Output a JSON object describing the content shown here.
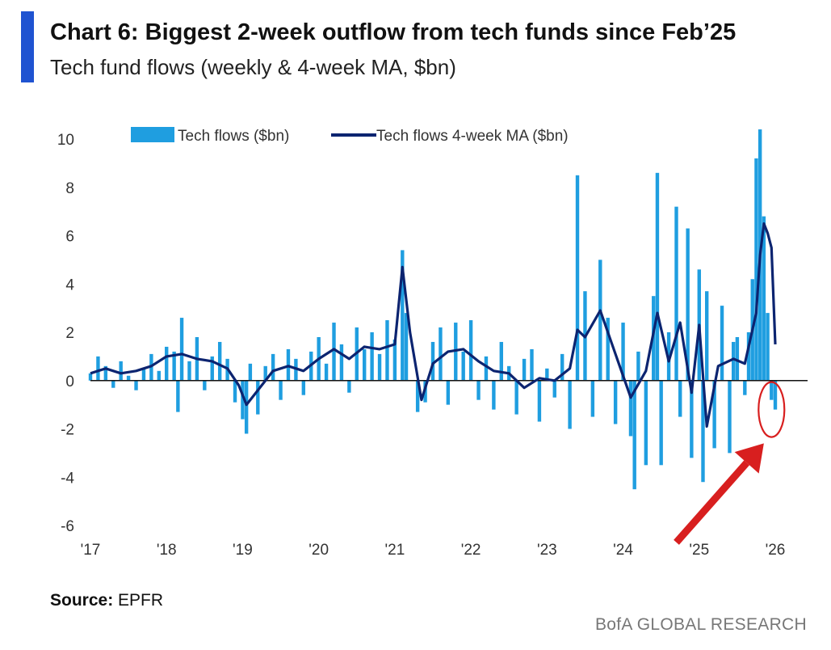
{
  "header": {
    "title": "Chart 6: Biggest 2-week outflow from tech funds since Feb’25",
    "subtitle": "Tech fund flows (weekly & 4-week MA, $bn)"
  },
  "footer": {
    "source_label": "Source:",
    "source_value": "EPFR",
    "brand": "BofA GLOBAL RESEARCH"
  },
  "colors": {
    "accent": "#1f53d1",
    "bars": "#1f9ee0",
    "ma_line": "#0c2470",
    "highlight": "#d81f1f"
  },
  "chart_data": {
    "type": "bar",
    "title": "",
    "xlabel": "",
    "ylabel": "",
    "ylim": [
      -6,
      10
    ],
    "yticks": [
      "10",
      "8",
      "6",
      "4",
      "2",
      "0",
      "-2",
      "-4",
      "-6"
    ],
    "xticks": [
      "'17",
      "'18",
      "'19",
      "'20",
      "'21",
      "'22",
      "'23",
      "'24",
      "'25",
      "'26"
    ],
    "xrange": [
      2017.0,
      2026.3
    ],
    "grid": false,
    "legend": "top-left",
    "series": [
      {
        "name": "Tech flows ($bn)",
        "kind": "bar",
        "points": [
          [
            2017.0,
            0.3
          ],
          [
            2017.1,
            1.0
          ],
          [
            2017.2,
            0.6
          ],
          [
            2017.3,
            -0.3
          ],
          [
            2017.4,
            0.8
          ],
          [
            2017.5,
            0.2
          ],
          [
            2017.6,
            -0.4
          ],
          [
            2017.7,
            0.5
          ],
          [
            2017.8,
            1.1
          ],
          [
            2017.9,
            0.4
          ],
          [
            2018.0,
            1.4
          ],
          [
            2018.1,
            1.2
          ],
          [
            2018.15,
            -1.3
          ],
          [
            2018.2,
            2.6
          ],
          [
            2018.3,
            0.8
          ],
          [
            2018.4,
            1.8
          ],
          [
            2018.5,
            -0.4
          ],
          [
            2018.6,
            1.0
          ],
          [
            2018.7,
            1.6
          ],
          [
            2018.8,
            0.9
          ],
          [
            2018.9,
            -0.9
          ],
          [
            2019.0,
            -1.6
          ],
          [
            2019.05,
            -2.2
          ],
          [
            2019.1,
            0.7
          ],
          [
            2019.2,
            -1.4
          ],
          [
            2019.3,
            0.6
          ],
          [
            2019.4,
            1.1
          ],
          [
            2019.5,
            -0.8
          ],
          [
            2019.6,
            1.3
          ],
          [
            2019.7,
            0.9
          ],
          [
            2019.8,
            -0.6
          ],
          [
            2019.9,
            1.2
          ],
          [
            2020.0,
            1.8
          ],
          [
            2020.1,
            0.7
          ],
          [
            2020.2,
            2.4
          ],
          [
            2020.3,
            1.5
          ],
          [
            2020.4,
            -0.5
          ],
          [
            2020.5,
            2.2
          ],
          [
            2020.6,
            1.3
          ],
          [
            2020.7,
            2.0
          ],
          [
            2020.8,
            1.1
          ],
          [
            2020.9,
            2.5
          ],
          [
            2021.0,
            1.7
          ],
          [
            2021.1,
            5.4
          ],
          [
            2021.15,
            2.8
          ],
          [
            2021.3,
            -1.3
          ],
          [
            2021.4,
            -0.9
          ],
          [
            2021.5,
            1.6
          ],
          [
            2021.6,
            2.2
          ],
          [
            2021.7,
            -1.0
          ],
          [
            2021.8,
            2.4
          ],
          [
            2021.9,
            1.2
          ],
          [
            2022.0,
            2.5
          ],
          [
            2022.1,
            -0.8
          ],
          [
            2022.2,
            1.0
          ],
          [
            2022.3,
            -1.2
          ],
          [
            2022.4,
            1.6
          ],
          [
            2022.5,
            0.6
          ],
          [
            2022.6,
            -1.4
          ],
          [
            2022.7,
            0.9
          ],
          [
            2022.8,
            1.3
          ],
          [
            2022.9,
            -1.7
          ],
          [
            2023.0,
            0.5
          ],
          [
            2023.1,
            -0.7
          ],
          [
            2023.2,
            1.1
          ],
          [
            2023.3,
            -2.0
          ],
          [
            2023.4,
            8.5
          ],
          [
            2023.5,
            3.7
          ],
          [
            2023.6,
            -1.5
          ],
          [
            2023.7,
            5.0
          ],
          [
            2023.8,
            2.6
          ],
          [
            2023.9,
            -1.8
          ],
          [
            2024.0,
            2.4
          ],
          [
            2024.1,
            -2.3
          ],
          [
            2024.15,
            -4.5
          ],
          [
            2024.2,
            1.2
          ],
          [
            2024.3,
            -3.5
          ],
          [
            2024.4,
            3.5
          ],
          [
            2024.45,
            8.6
          ],
          [
            2024.5,
            -3.5
          ],
          [
            2024.6,
            2.0
          ],
          [
            2024.7,
            7.2
          ],
          [
            2024.75,
            -1.5
          ],
          [
            2024.85,
            6.3
          ],
          [
            2024.9,
            -3.2
          ],
          [
            2025.0,
            4.6
          ],
          [
            2025.05,
            -4.2
          ],
          [
            2025.1,
            3.7
          ],
          [
            2025.2,
            -2.8
          ],
          [
            2025.3,
            3.1
          ],
          [
            2025.4,
            -3.0
          ],
          [
            2025.45,
            1.6
          ],
          [
            2025.5,
            1.8
          ],
          [
            2025.6,
            -0.6
          ],
          [
            2025.65,
            2.0
          ],
          [
            2025.7,
            4.2
          ],
          [
            2025.75,
            9.2
          ],
          [
            2025.8,
            10.4
          ],
          [
            2025.85,
            6.8
          ],
          [
            2025.9,
            2.8
          ],
          [
            2025.95,
            -0.8
          ],
          [
            2026.0,
            -1.2
          ]
        ]
      },
      {
        "name": "Tech flows 4-week MA ($bn)",
        "kind": "line",
        "points": [
          [
            2017.0,
            0.3
          ],
          [
            2017.2,
            0.5
          ],
          [
            2017.4,
            0.3
          ],
          [
            2017.6,
            0.4
          ],
          [
            2017.8,
            0.6
          ],
          [
            2018.0,
            1.0
          ],
          [
            2018.2,
            1.1
          ],
          [
            2018.4,
            0.9
          ],
          [
            2018.6,
            0.8
          ],
          [
            2018.8,
            0.5
          ],
          [
            2018.95,
            -0.2
          ],
          [
            2019.05,
            -1.0
          ],
          [
            2019.2,
            -0.4
          ],
          [
            2019.4,
            0.4
          ],
          [
            2019.6,
            0.6
          ],
          [
            2019.8,
            0.4
          ],
          [
            2020.0,
            0.9
          ],
          [
            2020.2,
            1.3
          ],
          [
            2020.4,
            0.9
          ],
          [
            2020.6,
            1.4
          ],
          [
            2020.8,
            1.3
          ],
          [
            2021.0,
            1.5
          ],
          [
            2021.1,
            4.7
          ],
          [
            2021.2,
            2.0
          ],
          [
            2021.35,
            -0.8
          ],
          [
            2021.5,
            0.7
          ],
          [
            2021.7,
            1.2
          ],
          [
            2021.9,
            1.3
          ],
          [
            2022.1,
            0.8
          ],
          [
            2022.3,
            0.4
          ],
          [
            2022.5,
            0.3
          ],
          [
            2022.7,
            -0.3
          ],
          [
            2022.9,
            0.1
          ],
          [
            2023.1,
            0.0
          ],
          [
            2023.3,
            0.5
          ],
          [
            2023.4,
            2.1
          ],
          [
            2023.5,
            1.8
          ],
          [
            2023.7,
            2.9
          ],
          [
            2023.9,
            1.1
          ],
          [
            2024.1,
            -0.7
          ],
          [
            2024.3,
            0.4
          ],
          [
            2024.45,
            2.8
          ],
          [
            2024.6,
            0.8
          ],
          [
            2024.75,
            2.4
          ],
          [
            2024.9,
            -0.5
          ],
          [
            2025.0,
            2.3
          ],
          [
            2025.1,
            -1.9
          ],
          [
            2025.25,
            0.6
          ],
          [
            2025.45,
            0.9
          ],
          [
            2025.6,
            0.7
          ],
          [
            2025.75,
            2.8
          ],
          [
            2025.8,
            5.2
          ],
          [
            2025.85,
            6.5
          ],
          [
            2025.9,
            6.1
          ],
          [
            2025.95,
            5.5
          ],
          [
            2026.0,
            1.5
          ]
        ]
      }
    ],
    "annotations": [
      {
        "kind": "circle",
        "x": 2025.95,
        "y": -1.2,
        "color": "#d81f1f"
      },
      {
        "kind": "arrow",
        "from": [
          2024.7,
          -6.7
        ],
        "to": [
          2025.85,
          -2.6
        ],
        "color": "#d81f1f"
      }
    ]
  }
}
